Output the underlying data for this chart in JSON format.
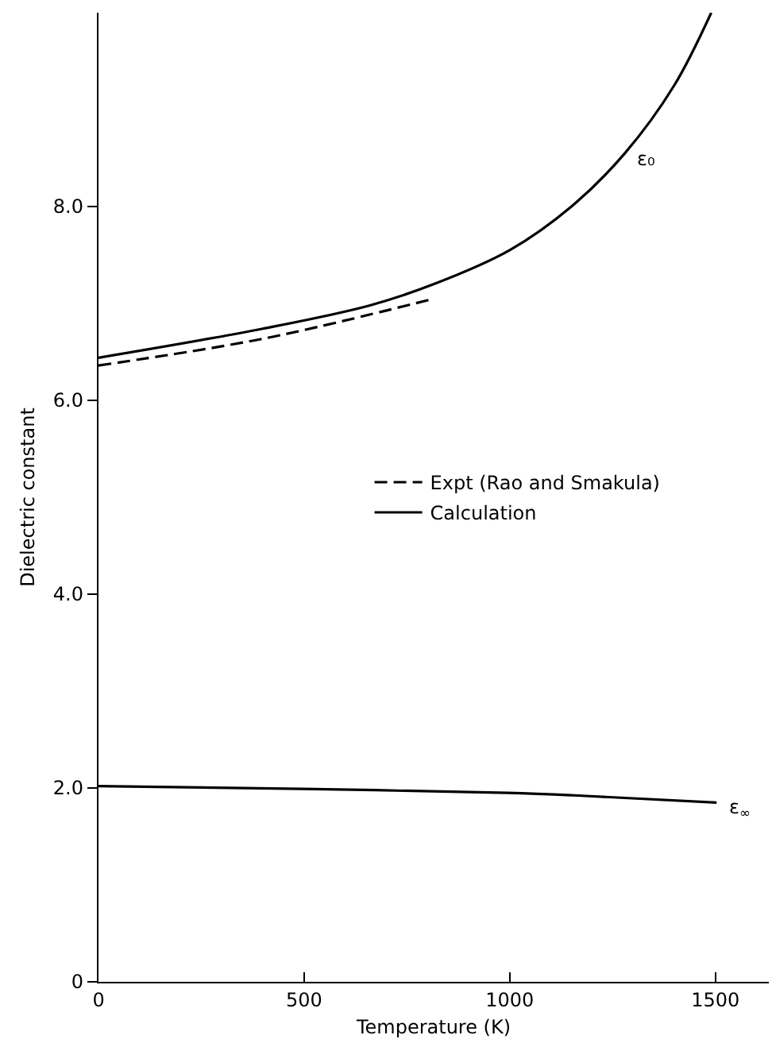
{
  "chart_data": {
    "type": "line",
    "xlabel": "Temperature (K)",
    "ylabel": "Dielectric constant",
    "xlim": [
      0,
      1630
    ],
    "ylim": [
      0,
      10
    ],
    "xticks": [
      0,
      500,
      1000,
      1500
    ],
    "yticks": [
      0,
      {
        "value": 2,
        "label": "2.0"
      },
      {
        "value": 4,
        "label": "4.0"
      },
      {
        "value": 6,
        "label": "6.0"
      },
      {
        "value": 8,
        "label": "8.0"
      }
    ],
    "grid": false,
    "legend": "center",
    "series": [
      {
        "name": "Expt (Rao and Smakula)",
        "color": "#000000",
        "line_style": "dashed",
        "x": [
          0,
          405,
          816
        ],
        "values": [
          6.36,
          6.64,
          7.05
        ]
      },
      {
        "name": "Calculation",
        "color": "#000000",
        "line_style": "solid",
        "x": [
          0,
          400,
          660,
          816,
          1000,
          1150,
          1280,
          1400,
          1490
        ],
        "values": [
          6.44,
          6.74,
          6.98,
          7.2,
          7.55,
          8.0,
          8.55,
          9.25,
          10.0
        ]
      },
      {
        "color": "#000000",
        "line_style": "solid",
        "x": [
          0,
          495,
          995,
          1175,
          1503
        ],
        "values": [
          2.02,
          1.99,
          1.95,
          1.92,
          1.85
        ]
      }
    ],
    "annotations": [
      {
        "text": "ε₀",
        "x": 1280,
        "y": 8.55
      },
      {
        "text": "ε$_{∞}$",
        "x": 1503,
        "y": 1.85
      }
    ]
  }
}
